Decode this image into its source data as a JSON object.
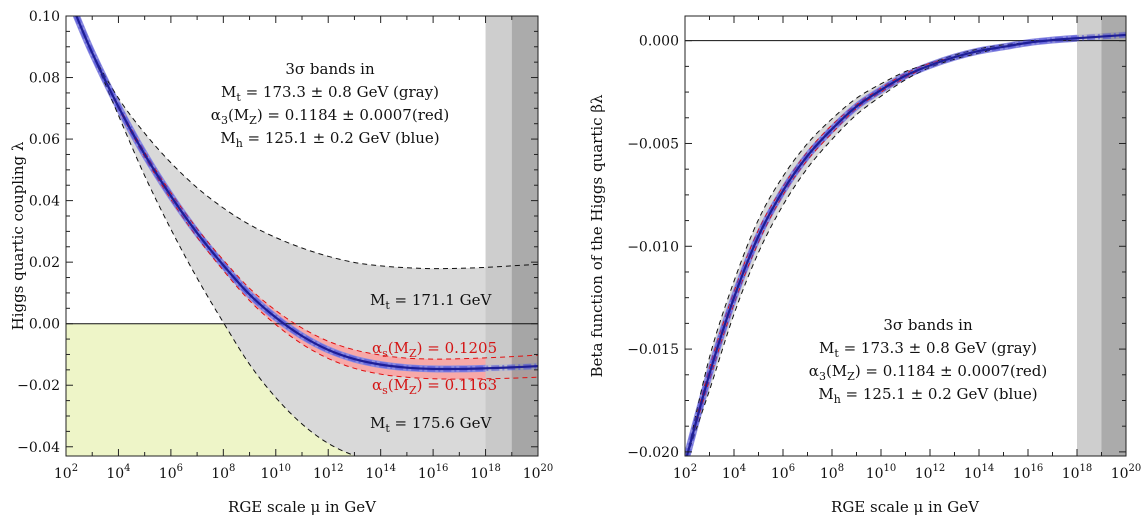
{
  "chart_data": [
    {
      "type": "line",
      "panel": "left",
      "xlabel": "RGE scale μ in GeV",
      "ylabel": "Higgs quartic coupling λ",
      "x_scale": "log10",
      "xlim": [
        100,
        1e+20
      ],
      "ylim": [
        -0.043,
        0.1
      ],
      "x_ticks": [
        {
          "value": 100,
          "mant": "10",
          "exp": "2"
        },
        {
          "value": 10000.0,
          "mant": "10",
          "exp": "4"
        },
        {
          "value": 1000000.0,
          "mant": "10",
          "exp": "6"
        },
        {
          "value": 100000000.0,
          "mant": "10",
          "exp": "8"
        },
        {
          "value": 10000000000.0,
          "mant": "10",
          "exp": "10"
        },
        {
          "value": 1000000000000.0,
          "mant": "10",
          "exp": "12"
        },
        {
          "value": 100000000000000.0,
          "mant": "10",
          "exp": "14"
        },
        {
          "value": 1e+16,
          "mant": "10",
          "exp": "16"
        },
        {
          "value": 1e+18,
          "mant": "10",
          "exp": "18"
        },
        {
          "value": 1e+20,
          "mant": "10",
          "exp": "20"
        }
      ],
      "y_ticks": [
        {
          "value": 0.1,
          "label": "0.10"
        },
        {
          "value": 0.08,
          "label": "0.08"
        },
        {
          "value": 0.06,
          "label": "0.06"
        },
        {
          "value": 0.04,
          "label": "0.04"
        },
        {
          "value": 0.02,
          "label": "0.02"
        },
        {
          "value": 0.0,
          "label": "0.00"
        },
        {
          "value": -0.02,
          "label": "−0.02"
        },
        {
          "value": -0.04,
          "label": "−0.04"
        }
      ],
      "x": [
        250,
        1000.0,
        10000.0,
        100000.0,
        1000000.0,
        10000000.0,
        100000000.0,
        1000000000.0,
        10000000000.0,
        100000000000.0,
        1000000000000.0,
        10000000000000.0,
        100000000000000.0,
        1000000000000000.0,
        1e+16,
        1e+17,
        1e+18,
        1e+19,
        1e+20
      ],
      "series": [
        {
          "key": "central",
          "values": [
            0.1,
            0.088,
            0.0705,
            0.055,
            0.0415,
            0.0295,
            0.019,
            0.0095,
            0.002,
            -0.004,
            -0.0085,
            -0.0115,
            -0.0133,
            -0.0143,
            -0.0147,
            -0.0147,
            -0.0145,
            -0.0142,
            -0.0138
          ]
        },
        {
          "key": "mt_low",
          "values": [
            0.1,
            0.088,
            0.0733,
            0.0619,
            0.0523,
            0.0442,
            0.0376,
            0.0322,
            0.028,
            0.0246,
            0.0219,
            0.0199,
            0.0188,
            0.0182,
            0.0179,
            0.018,
            0.0183,
            0.0188,
            0.0193
          ]
        },
        {
          "key": "mt_high",
          "values": [
            0.1,
            0.088,
            0.0677,
            0.0481,
            0.0307,
            0.0148,
            0.0004,
            -0.0132,
            -0.024,
            -0.0326,
            -0.0389,
            -0.0429,
            -0.0454,
            -0.0468,
            -0.0475,
            -0.0474,
            -0.0473,
            -0.0472,
            -0.0469
          ]
        },
        {
          "key": "as_high",
          "values": [
            0.1,
            0.088,
            0.071,
            0.0558,
            0.0426,
            0.0309,
            0.0207,
            0.0115,
            0.0043,
            -0.0014,
            -0.0057,
            -0.0085,
            -0.0102,
            -0.0112,
            -0.0115,
            -0.0114,
            -0.0111,
            -0.0107,
            -0.0102
          ]
        },
        {
          "key": "as_low",
          "values": [
            0.1,
            0.088,
            0.07,
            0.0542,
            0.0404,
            0.0281,
            0.0173,
            0.0075,
            -0.0003,
            -0.0066,
            -0.0113,
            -0.0145,
            -0.0164,
            -0.0174,
            -0.0179,
            -0.018,
            -0.0179,
            -0.0177,
            -0.0174
          ]
        }
      ],
      "vertical_bands": [
        {
          "from": 1e+18,
          "to": 1e+19,
          "shade": "light",
          "color": "#c6c6c6"
        },
        {
          "from": 1e+19,
          "to": 1e+20,
          "shade": "dark",
          "color": "#9c9c9c"
        }
      ],
      "region": {
        "name": "λ < 0",
        "color": "#eef5c8"
      },
      "annotation_lines": [
        "3σ bands in",
        "Mt = 173.3 ± 0.8 GeV (gray)",
        "α3(MZ) = 0.1184 ± 0.0007(red)",
        "Mh = 125.1 ± 0.2 GeV (blue)"
      ],
      "curve_labels": [
        {
          "text": "Mt = 171.1 GeV",
          "color": "#111111"
        },
        {
          "text": "αs(MZ) = 0.1205",
          "color": "#d41414"
        },
        {
          "text": "αs(MZ) = 0.1163",
          "color": "#d41414"
        },
        {
          "text": "Mt = 175.6 GeV",
          "color": "#111111"
        }
      ],
      "colors": {
        "gray_band": "#d9d9d9",
        "red_band": "#f7a9a9",
        "blue_band": "#8c8ce0",
        "central": "#1e1e96",
        "red_dash": "#e01010"
      }
    },
    {
      "type": "line",
      "panel": "right",
      "xlabel": "RGE scale μ in GeV",
      "ylabel": "Beta function of the Higgs quartic βλ",
      "x_scale": "log10",
      "xlim": [
        100,
        1e+20
      ],
      "ylim": [
        -0.0202,
        0.0012
      ],
      "x_ticks": [
        {
          "value": 100,
          "mant": "10",
          "exp": "2"
        },
        {
          "value": 10000.0,
          "mant": "10",
          "exp": "4"
        },
        {
          "value": 1000000.0,
          "mant": "10",
          "exp": "6"
        },
        {
          "value": 100000000.0,
          "mant": "10",
          "exp": "8"
        },
        {
          "value": 10000000000.0,
          "mant": "10",
          "exp": "10"
        },
        {
          "value": 1000000000000.0,
          "mant": "10",
          "exp": "12"
        },
        {
          "value": 100000000000000.0,
          "mant": "10",
          "exp": "14"
        },
        {
          "value": 1e+16,
          "mant": "10",
          "exp": "16"
        },
        {
          "value": 1e+18,
          "mant": "10",
          "exp": "18"
        },
        {
          "value": 1e+20,
          "mant": "10",
          "exp": "20"
        }
      ],
      "y_ticks": [
        {
          "value": 0.0,
          "label": "0.000"
        },
        {
          "value": -0.005,
          "label": "−0.005"
        },
        {
          "value": -0.01,
          "label": "−0.010"
        },
        {
          "value": -0.015,
          "label": "−0.015"
        },
        {
          "value": -0.02,
          "label": "−0.020"
        }
      ],
      "x": [
        120,
        1000.0,
        10000.0,
        100000.0,
        1000000.0,
        10000000.0,
        100000000.0,
        1000000000.0,
        10000000000.0,
        100000000000.0,
        1000000000000.0,
        10000000000000.0,
        100000000000000.0,
        1000000000000000.0,
        1e+16,
        1e+17,
        1e+18,
        1e+19,
        1e+20
      ],
      "series": [
        {
          "key": "central",
          "values": [
            -0.0202,
            -0.0162,
            -0.0125,
            -0.0095,
            -0.0073,
            -0.0056,
            -0.0043,
            -0.0032,
            -0.0024,
            -0.0017,
            -0.0012,
            -0.0008,
            -0.0005,
            -0.0003,
            -0.0001,
            3e-05,
            0.00012,
            0.0002,
            0.00028
          ]
        },
        {
          "key": "mt_low",
          "values": [
            -0.0202,
            -0.0154,
            -0.0117,
            -0.0087,
            -0.0066,
            -0.005,
            -0.0038,
            -0.0028,
            -0.0021,
            -0.0015,
            -0.0011,
            -0.0007,
            -0.0004,
            -0.0002,
            -0.0001,
            5e-05,
            0.00013,
            0.0002,
            0.00028
          ]
        },
        {
          "key": "mt_high",
          "values": [
            -0.0202,
            -0.017,
            -0.0133,
            -0.0103,
            -0.008,
            -0.0062,
            -0.0048,
            -0.0036,
            -0.0027,
            -0.0019,
            -0.0013,
            -0.0009,
            -0.0006,
            -0.0003,
            -0.0001,
            1e-05,
            0.00011,
            0.0002,
            0.00028
          ]
        },
        {
          "key": "as_high",
          "values": [
            -0.0202,
            -0.0159,
            -0.0122,
            -0.0092,
            -0.0071,
            -0.0054,
            -0.0041,
            -0.0031,
            -0.0023,
            -0.0016,
            -0.0011,
            -0.0008,
            -0.0005,
            -0.0003,
            -0.0001,
            4e-05,
            0.00012,
            0.0002,
            0.00028
          ]
        },
        {
          "key": "as_low",
          "values": [
            -0.0202,
            -0.0165,
            -0.0128,
            -0.0098,
            -0.0075,
            -0.0058,
            -0.0045,
            -0.0033,
            -0.0025,
            -0.0018,
            -0.0012,
            -0.0008,
            -0.0005,
            -0.0003,
            -0.0001,
            2e-05,
            0.00012,
            0.0002,
            0.00028
          ]
        }
      ],
      "vertical_bands": [
        {
          "from": 1e+18,
          "to": 1e+19,
          "shade": "light",
          "color": "#c6c6c6"
        },
        {
          "from": 1e+19,
          "to": 1e+20,
          "shade": "dark",
          "color": "#9c9c9c"
        }
      ],
      "annotation_lines": [
        "3σ bands in",
        "Mt = 173.3 ± 0.8 GeV (gray)",
        "α3(MZ) = 0.1184 ± 0.0007(red)",
        "Mh = 125.1 ± 0.2 GeV (blue)"
      ],
      "colors": {
        "gray_band": "#d9d9d9",
        "red_band": "#f7a9a9",
        "blue_band": "#8c8ce0",
        "central": "#1e1e96",
        "red_dash": "#e01010"
      }
    }
  ]
}
